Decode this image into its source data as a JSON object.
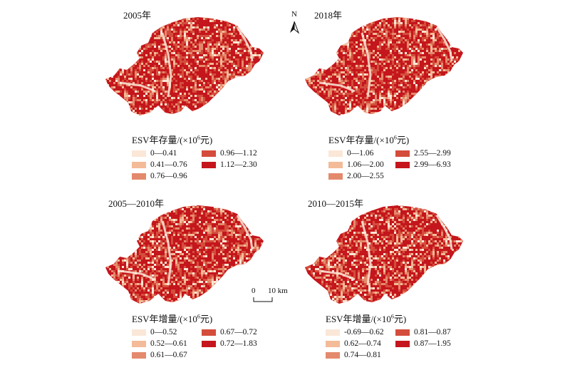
{
  "north_label": "N",
  "scale_bar": {
    "zero": "0",
    "distance": "10 km"
  },
  "panels": [
    {
      "title": "2005年",
      "legend_title": "ESV年存量/(×10",
      "legend_sup": "6",
      "legend_unit": "元)",
      "classes": [
        {
          "label": "0—0.41",
          "color": "#fbe7d7"
        },
        {
          "label": "0.41—0.76",
          "color": "#f3bb98"
        },
        {
          "label": "0.76—0.96",
          "color": "#e48a6c"
        },
        {
          "label": "0.96—1.12",
          "color": "#d44d3c"
        },
        {
          "label": "1.12—2.30",
          "color": "#c4161c"
        }
      ]
    },
    {
      "title": "2018年",
      "legend_title": "ESV年存量/(×10",
      "legend_sup": "6",
      "legend_unit": "元)",
      "classes": [
        {
          "label": "0—1.06",
          "color": "#fbe7d7"
        },
        {
          "label": "1.06—2.00",
          "color": "#f3bb98"
        },
        {
          "label": "2.00—2.55",
          "color": "#e48a6c"
        },
        {
          "label": "2.55—2.99",
          "color": "#d44d3c"
        },
        {
          "label": "2.99—6.93",
          "color": "#c4161c"
        }
      ]
    },
    {
      "title": "2005—2010年",
      "legend_title": "ESV年增量/(×10",
      "legend_sup": "6",
      "legend_unit": "元)",
      "classes": [
        {
          "label": "0—0.52",
          "color": "#fbe7d7"
        },
        {
          "label": "0.52—0.61",
          "color": "#f3bb98"
        },
        {
          "label": "0.61—0.67",
          "color": "#e48a6c"
        },
        {
          "label": "0.67—0.72",
          "color": "#d44d3c"
        },
        {
          "label": "0.72—1.83",
          "color": "#c4161c"
        }
      ]
    },
    {
      "title": "2010—2015年",
      "legend_title": "ESV年增量/(×10",
      "legend_sup": "6",
      "legend_unit": "元)",
      "classes": [
        {
          "label": "-0.69—0.62",
          "color": "#fbe7d7"
        },
        {
          "label": "0.62—0.74",
          "color": "#f3bb98"
        },
        {
          "label": "0.74—0.81",
          "color": "#e48a6c"
        },
        {
          "label": "0.81—0.87",
          "color": "#d44d3c"
        },
        {
          "label": "0.87—1.95",
          "color": "#c4161c"
        }
      ]
    }
  ]
}
